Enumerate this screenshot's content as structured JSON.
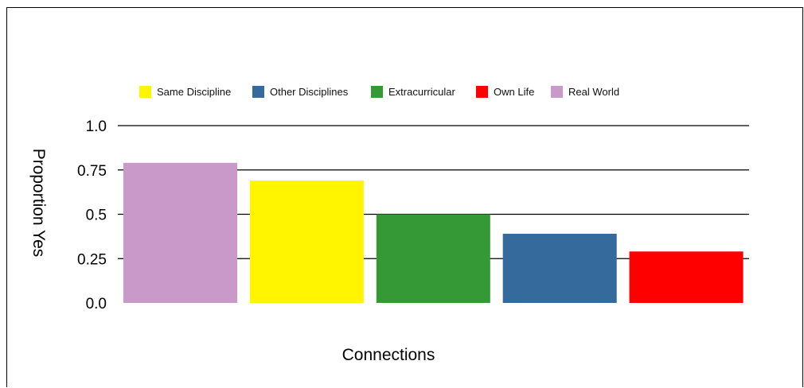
{
  "chart_data": {
    "type": "bar",
    "title": "",
    "xlabel": "Connections",
    "ylabel": "Proportion Yes",
    "ylim": [
      0,
      1.0
    ],
    "yticks": [
      {
        "value": 0.0,
        "label": "0.0"
      },
      {
        "value": 0.25,
        "label": "0.25"
      },
      {
        "value": 0.5,
        "label": "0.5"
      },
      {
        "value": 0.75,
        "label": "0.75"
      },
      {
        "value": 1.0,
        "label": "1.0"
      }
    ],
    "grid": true,
    "legend_position": "top",
    "categories": [
      "Real World",
      "Same Discipline",
      "Extracurricular",
      "Other Disciplines",
      "Own Life"
    ],
    "values": [
      0.79,
      0.69,
      0.5,
      0.39,
      0.29
    ],
    "colors": [
      "#c899c9",
      "#fff500",
      "#359a35",
      "#356a9c",
      "#ff0000"
    ],
    "legend": [
      {
        "label": "Same Discipline",
        "color": "#fff500"
      },
      {
        "label": "Other Disciplines",
        "color": "#356a9c"
      },
      {
        "label": "Extracurricular",
        "color": "#359a35"
      },
      {
        "label": "Own Life",
        "color": "#ff0000"
      },
      {
        "label": "Real World",
        "color": "#c899c9"
      }
    ]
  }
}
